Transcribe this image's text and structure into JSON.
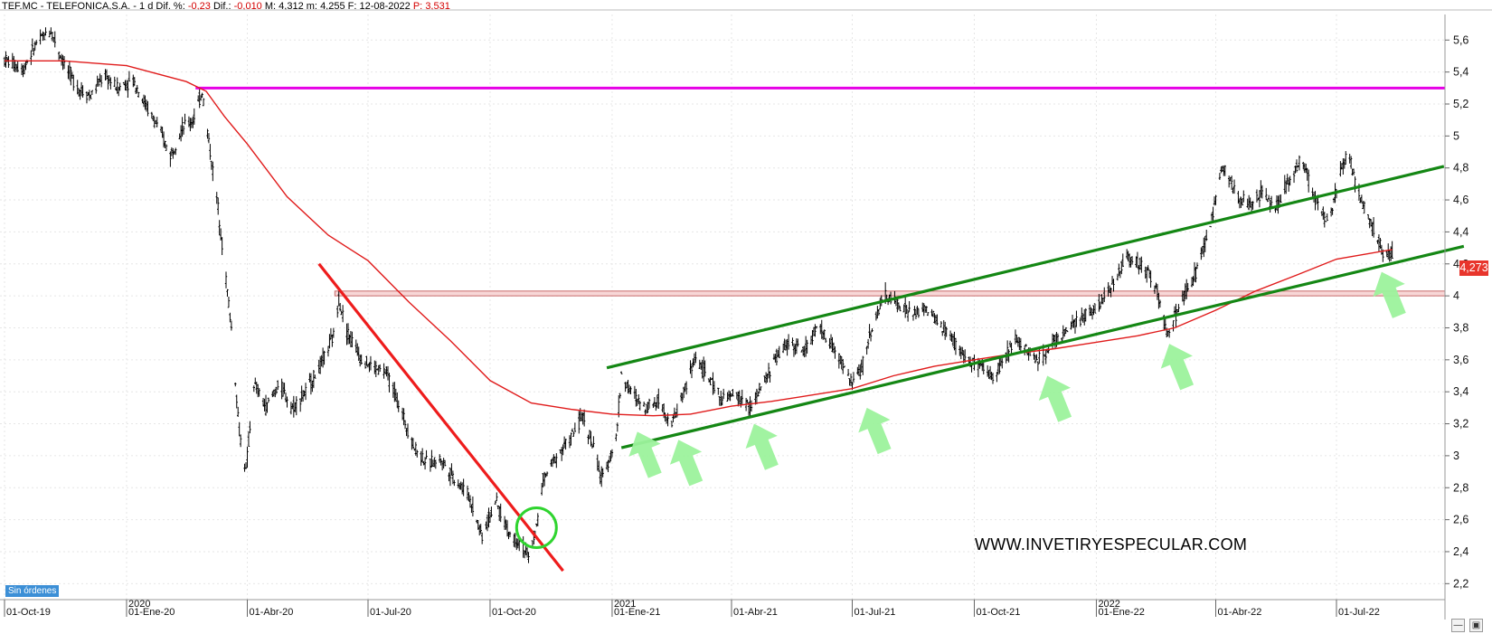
{
  "header": {
    "symbol": "TEF.MC - TELEFONICA,S.A.",
    "dash": "-",
    "period": "1 d",
    "dif_pct_label": "Dif. %:",
    "dif_pct_value": "-0,23",
    "dif_label": "Dif.:",
    "dif_value": "-0,010",
    "max_label": "M:",
    "max_value": "4,312",
    "min_label": "m:",
    "min_value": "4,255",
    "date_label": "F:",
    "date_value": "12-08-2022",
    "p_label": "P:",
    "p_value": "3,531"
  },
  "watermark": "WWW.INVETIRYESPECULAR.COM",
  "orders_badge": "Sin órdenes",
  "last_price_label": "4,273",
  "window_controls": {
    "minimize": "—",
    "save": "▣"
  },
  "colors": {
    "candles": "#000000",
    "moving_average": "#e01b1b",
    "resistance_line": "#e600e6",
    "support_zone": "#c86a6a",
    "downtrend_line": "#ee1c1c",
    "channel_lines": "#148714",
    "arrows": "#9cf29c",
    "breakout_circle": "#2fd42f",
    "last_price_tag": "#e8352c"
  },
  "chart_data": {
    "type": "line",
    "ylim": [
      2.1,
      5.76
    ],
    "yticks": [
      "2,2",
      "2,4",
      "2,6",
      "2,8",
      "3",
      "3,2",
      "3,4",
      "3,6",
      "3,8",
      "4",
      "4,2",
      "4,4",
      "4,6",
      "4,8",
      "5",
      "5,2",
      "5,4",
      "5,6"
    ],
    "yticks_values": [
      2.2,
      2.4,
      2.6,
      2.8,
      3.0,
      3.2,
      3.4,
      3.6,
      3.8,
      4.0,
      4.2,
      4.4,
      4.6,
      4.8,
      5.0,
      5.2,
      5.4,
      5.6
    ],
    "x_dates": [
      "2019-10-01",
      "2020-01-01",
      "2020-04-01",
      "2020-07-01",
      "2020-10-01",
      "2021-01-01",
      "2021-04-01",
      "2021-07-01",
      "2021-10-01",
      "2022-01-01",
      "2022-04-01",
      "2022-07-01"
    ],
    "x_labels": [
      "01-Oct-19",
      "01-Ene-20",
      "01-Abr-20",
      "01-Jul-20",
      "01-Oct-20",
      "01-Ene-21",
      "01-Abr-21",
      "01-Jul-21",
      "01-Oct-21",
      "01-Ene-22",
      "01-Abr-22",
      "01-Jul-22"
    ],
    "year_markers": [
      {
        "date": "2020-01-01",
        "label": "2020"
      },
      {
        "date": "2021-01-01",
        "label": "2021"
      },
      {
        "date": "2022-01-01",
        "label": "2022"
      }
    ],
    "series": [
      {
        "role": "price",
        "points": [
          [
            "2019-10-01",
            5.48
          ],
          [
            "2019-10-15",
            5.42
          ],
          [
            "2019-10-25",
            5.58
          ],
          [
            "2019-11-05",
            5.66
          ],
          [
            "2019-11-15",
            5.45
          ],
          [
            "2019-11-25",
            5.3
          ],
          [
            "2019-12-05",
            5.25
          ],
          [
            "2019-12-15",
            5.38
          ],
          [
            "2019-12-25",
            5.3
          ],
          [
            "2020-01-06",
            5.35
          ],
          [
            "2020-01-15",
            5.2
          ],
          [
            "2020-01-25",
            5.05
          ],
          [
            "2020-02-03",
            4.88
          ],
          [
            "2020-02-12",
            5.05
          ],
          [
            "2020-02-20",
            5.1
          ],
          [
            "2020-02-27",
            5.28
          ],
          [
            "2020-03-04",
            4.9
          ],
          [
            "2020-03-10",
            4.55
          ],
          [
            "2020-03-16",
            4.1
          ],
          [
            "2020-03-20",
            3.8
          ],
          [
            "2020-03-26",
            3.15
          ],
          [
            "2020-03-31",
            2.9
          ],
          [
            "2020-04-06",
            3.45
          ],
          [
            "2020-04-15",
            3.3
          ],
          [
            "2020-04-25",
            3.45
          ],
          [
            "2020-05-05",
            3.3
          ],
          [
            "2020-05-15",
            3.4
          ],
          [
            "2020-05-25",
            3.55
          ],
          [
            "2020-06-05",
            3.75
          ],
          [
            "2020-06-09",
            3.98
          ],
          [
            "2020-06-15",
            3.78
          ],
          [
            "2020-06-25",
            3.62
          ],
          [
            "2020-07-05",
            3.55
          ],
          [
            "2020-07-15",
            3.52
          ],
          [
            "2020-07-25",
            3.3
          ],
          [
            "2020-08-05",
            3.05
          ],
          [
            "2020-08-15",
            2.95
          ],
          [
            "2020-08-25",
            2.98
          ],
          [
            "2020-09-05",
            2.85
          ],
          [
            "2020-09-15",
            2.75
          ],
          [
            "2020-09-25",
            2.5
          ],
          [
            "2020-10-05",
            2.72
          ],
          [
            "2020-10-15",
            2.52
          ],
          [
            "2020-10-25",
            2.45
          ],
          [
            "2020-10-30",
            2.35
          ],
          [
            "2020-11-05",
            2.55
          ],
          [
            "2020-11-10",
            2.85
          ],
          [
            "2020-11-20",
            3.0
          ],
          [
            "2020-11-30",
            3.1
          ],
          [
            "2020-12-10",
            3.25
          ],
          [
            "2020-12-18",
            3.05
          ],
          [
            "2020-12-24",
            2.85
          ],
          [
            "2021-01-04",
            3.1
          ],
          [
            "2021-01-08",
            3.5
          ],
          [
            "2021-01-15",
            3.4
          ],
          [
            "2021-01-25",
            3.3
          ],
          [
            "2021-02-05",
            3.35
          ],
          [
            "2021-02-15",
            3.2
          ],
          [
            "2021-02-22",
            3.35
          ],
          [
            "2021-03-05",
            3.62
          ],
          [
            "2021-03-15",
            3.48
          ],
          [
            "2021-03-25",
            3.35
          ],
          [
            "2021-04-05",
            3.38
          ],
          [
            "2021-04-15",
            3.3
          ],
          [
            "2021-04-25",
            3.45
          ],
          [
            "2021-05-05",
            3.62
          ],
          [
            "2021-05-15",
            3.72
          ],
          [
            "2021-05-25",
            3.65
          ],
          [
            "2021-06-05",
            3.8
          ],
          [
            "2021-06-15",
            3.7
          ],
          [
            "2021-06-25",
            3.55
          ],
          [
            "2021-07-01",
            3.45
          ],
          [
            "2021-07-08",
            3.55
          ],
          [
            "2021-07-15",
            3.78
          ],
          [
            "2021-07-25",
            4.0
          ],
          [
            "2021-08-05",
            3.95
          ],
          [
            "2021-08-15",
            3.88
          ],
          [
            "2021-08-25",
            3.92
          ],
          [
            "2021-09-05",
            3.82
          ],
          [
            "2021-09-15",
            3.72
          ],
          [
            "2021-09-25",
            3.6
          ],
          [
            "2021-10-05",
            3.55
          ],
          [
            "2021-10-15",
            3.5
          ],
          [
            "2021-10-25",
            3.62
          ],
          [
            "2021-11-01",
            3.75
          ],
          [
            "2021-11-10",
            3.65
          ],
          [
            "2021-11-20",
            3.6
          ],
          [
            "2021-11-30",
            3.72
          ],
          [
            "2021-12-10",
            3.78
          ],
          [
            "2021-12-20",
            3.85
          ],
          [
            "2022-01-03",
            3.95
          ],
          [
            "2022-01-13",
            4.05
          ],
          [
            "2022-01-23",
            4.25
          ],
          [
            "2022-02-03",
            4.2
          ],
          [
            "2022-02-13",
            4.1
          ],
          [
            "2022-02-24",
            3.75
          ],
          [
            "2022-03-05",
            3.95
          ],
          [
            "2022-03-15",
            4.1
          ],
          [
            "2022-03-25",
            4.35
          ],
          [
            "2022-04-01",
            4.6
          ],
          [
            "2022-04-06",
            4.82
          ],
          [
            "2022-04-16",
            4.65
          ],
          [
            "2022-04-26",
            4.55
          ],
          [
            "2022-05-06",
            4.65
          ],
          [
            "2022-05-16",
            4.55
          ],
          [
            "2022-05-26",
            4.72
          ],
          [
            "2022-06-05",
            4.85
          ],
          [
            "2022-06-15",
            4.6
          ],
          [
            "2022-06-25",
            4.45
          ],
          [
            "2022-07-05",
            4.8
          ],
          [
            "2022-07-10",
            4.92
          ],
          [
            "2022-07-15",
            4.7
          ],
          [
            "2022-07-22",
            4.55
          ],
          [
            "2022-07-30",
            4.4
          ],
          [
            "2022-08-05",
            4.27
          ],
          [
            "2022-08-12",
            4.27
          ]
        ]
      },
      {
        "role": "moving_average",
        "points": [
          [
            "2019-10-01",
            5.47
          ],
          [
            "2019-11-15",
            5.47
          ],
          [
            "2020-01-01",
            5.44
          ],
          [
            "2020-02-15",
            5.34
          ],
          [
            "2020-03-01",
            5.28
          ],
          [
            "2020-03-15",
            5.12
          ],
          [
            "2020-04-01",
            4.95
          ],
          [
            "2020-05-01",
            4.62
          ],
          [
            "2020-06-01",
            4.38
          ],
          [
            "2020-07-01",
            4.22
          ],
          [
            "2020-08-01",
            3.96
          ],
          [
            "2020-09-01",
            3.72
          ],
          [
            "2020-10-01",
            3.47
          ],
          [
            "2020-11-01",
            3.33
          ],
          [
            "2020-12-01",
            3.29
          ],
          [
            "2021-01-01",
            3.26
          ],
          [
            "2021-02-01",
            3.25
          ],
          [
            "2021-03-01",
            3.26
          ],
          [
            "2021-04-01",
            3.31
          ],
          [
            "2021-05-01",
            3.34
          ],
          [
            "2021-06-01",
            3.38
          ],
          [
            "2021-07-01",
            3.42
          ],
          [
            "2021-08-01",
            3.5
          ],
          [
            "2021-09-01",
            3.56
          ],
          [
            "2021-10-01",
            3.6
          ],
          [
            "2021-11-01",
            3.64
          ],
          [
            "2021-12-01",
            3.67
          ],
          [
            "2022-01-01",
            3.71
          ],
          [
            "2022-02-01",
            3.75
          ],
          [
            "2022-03-01",
            3.8
          ],
          [
            "2022-04-01",
            3.91
          ],
          [
            "2022-05-01",
            4.03
          ],
          [
            "2022-06-01",
            4.13
          ],
          [
            "2022-07-01",
            4.23
          ],
          [
            "2022-08-12",
            4.29
          ]
        ]
      }
    ]
  },
  "annotations": {
    "resistance_level": 5.3,
    "resistance_from": "2020-02-22",
    "support_zone": [
      4.0,
      4.03
    ],
    "support_from": "2020-06-06",
    "downtrend_line": [
      [
        "2020-05-25",
        4.2
      ],
      [
        "2020-11-25",
        2.28
      ]
    ],
    "channel_upper": [
      [
        "2020-12-28",
        3.55
      ],
      [
        "2022-09-20",
        4.81
      ]
    ],
    "channel_lower": [
      [
        "2021-01-08",
        3.05
      ],
      [
        "2022-10-05",
        4.31
      ]
    ],
    "breakout_circle_date": "2020-11-05",
    "breakout_circle_value": 2.55,
    "arrow_marks": [
      [
        "2021-01-20",
        3.15
      ],
      [
        "2021-02-20",
        3.1
      ],
      [
        "2021-04-18",
        3.2
      ],
      [
        "2021-07-12",
        3.3
      ],
      [
        "2021-11-25",
        3.5
      ],
      [
        "2022-02-25",
        3.7
      ],
      [
        "2022-08-04",
        4.15
      ]
    ]
  }
}
